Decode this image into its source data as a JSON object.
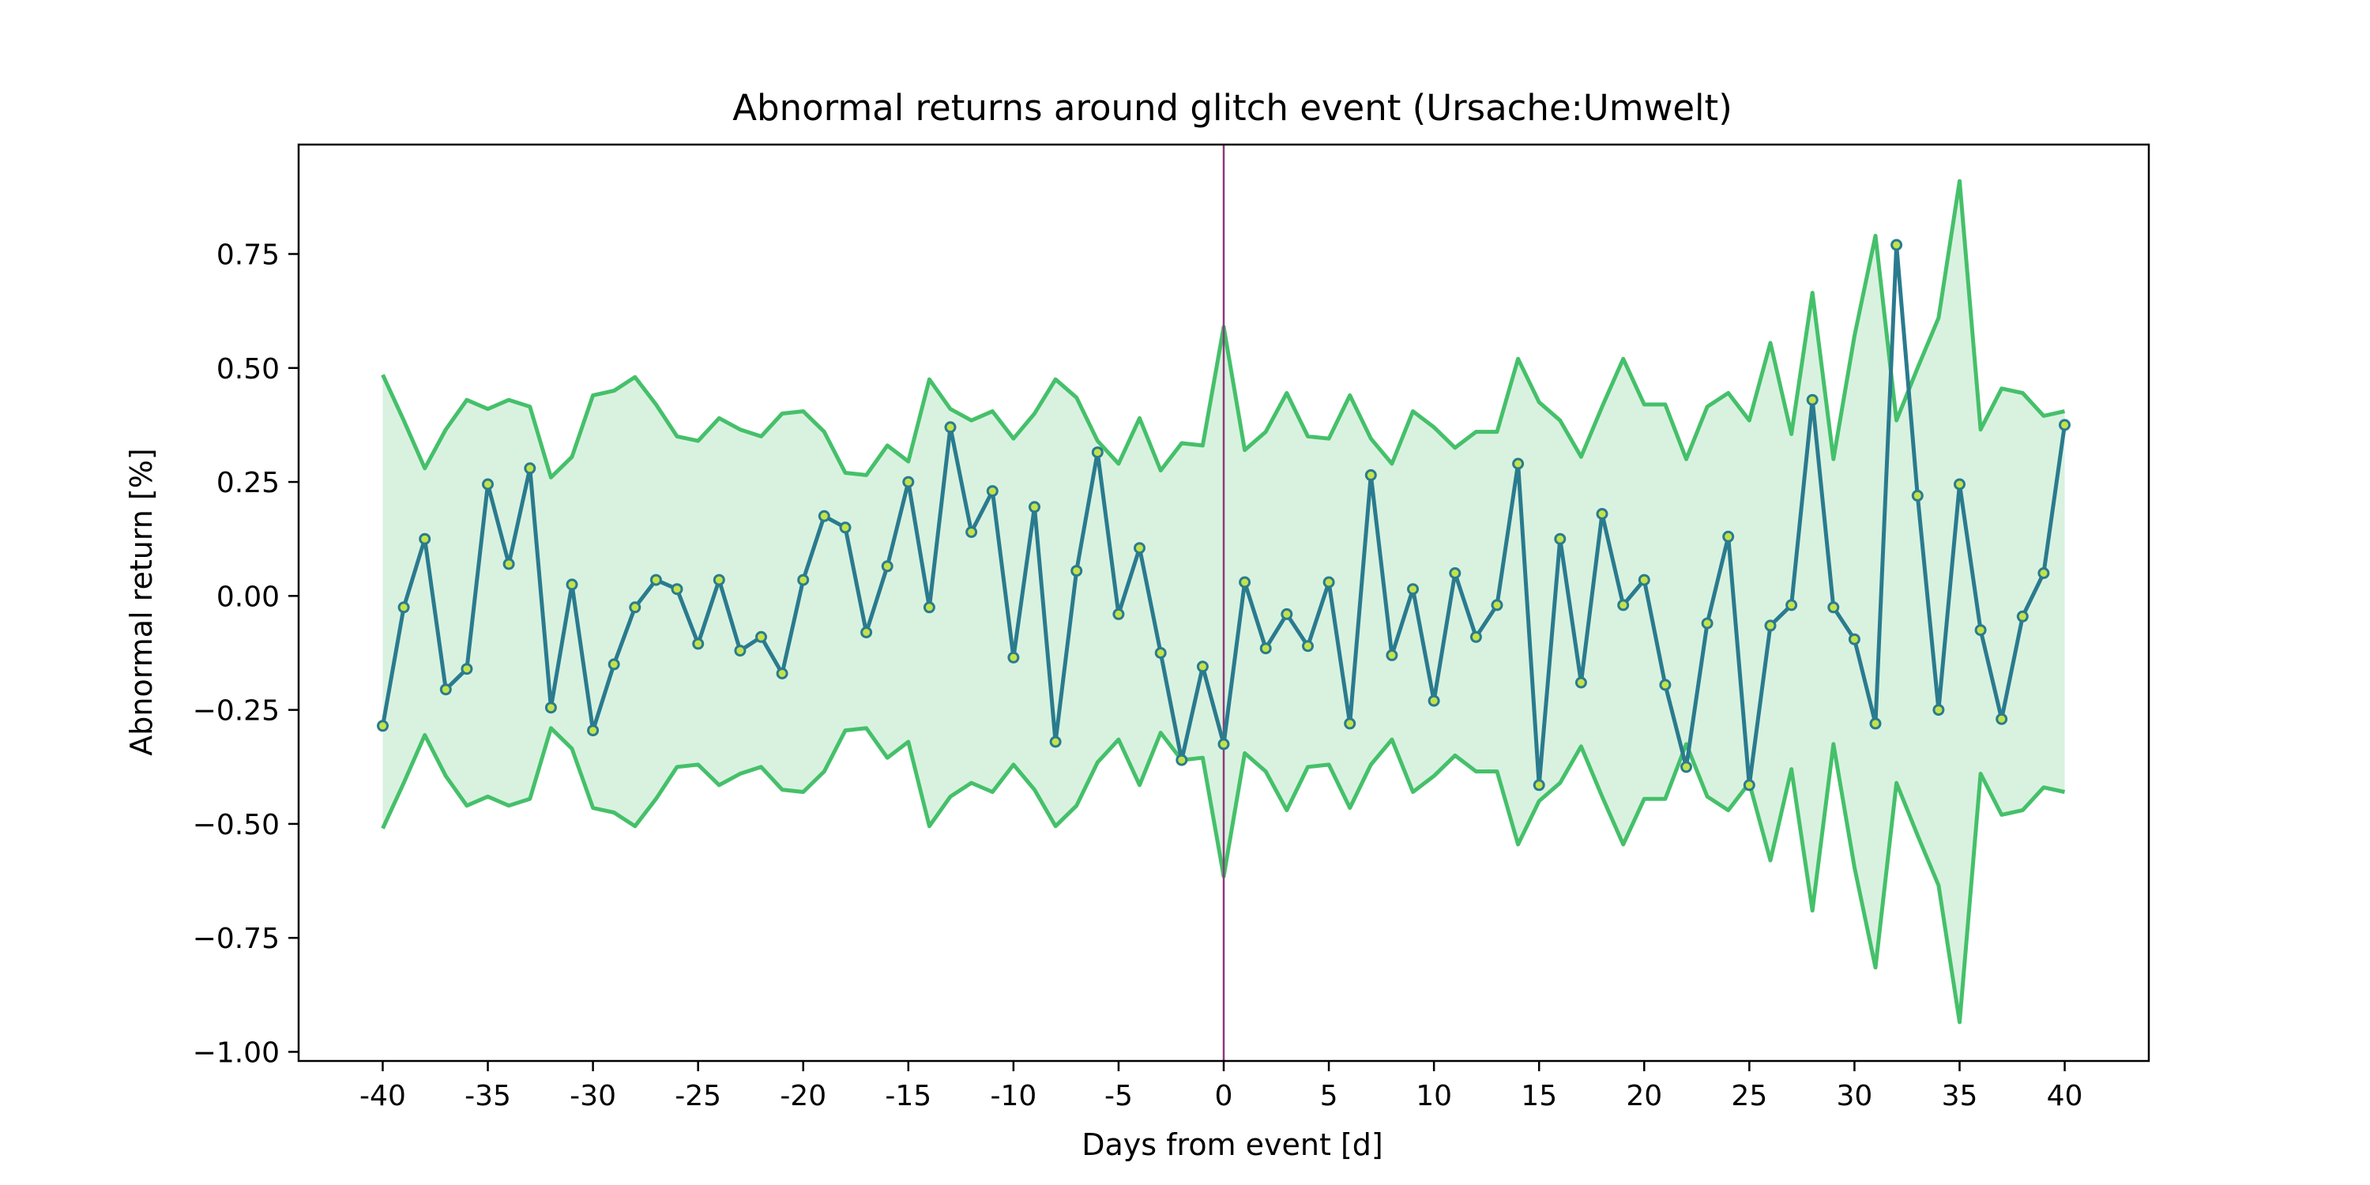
{
  "chart_data": {
    "type": "line",
    "title": "Abnormal returns around glitch event (Ursache:Umwelt)",
    "xlabel": "Days from event [d]",
    "ylabel": "Abnormal return [%]",
    "xlim": [
      -44,
      44
    ],
    "ylim": [
      -1.02,
      0.99
    ],
    "x_ticks": [
      -40,
      -35,
      -30,
      -25,
      -20,
      -15,
      -10,
      -5,
      0,
      5,
      10,
      15,
      20,
      25,
      30,
      35,
      40
    ],
    "x_tick_labels": [
      "-40",
      "-35",
      "-30",
      "-25",
      "-20",
      "-15",
      "-10",
      "-5",
      "0",
      "5",
      "10",
      "15",
      "20",
      "25",
      "30",
      "35",
      "40"
    ],
    "y_ticks": [
      -1.0,
      -0.75,
      -0.5,
      -0.25,
      0.0,
      0.25,
      0.5,
      0.75
    ],
    "y_tick_labels": [
      "−1.00",
      "−0.75",
      "−0.50",
      "−0.25",
      "0.00",
      "0.25",
      "0.50",
      "0.75"
    ],
    "event_day": 0,
    "grid": false,
    "legend": "none",
    "x": [
      -40,
      -39,
      -38,
      -37,
      -36,
      -35,
      -34,
      -33,
      -32,
      -31,
      -30,
      -29,
      -28,
      -27,
      -26,
      -25,
      -24,
      -23,
      -22,
      -21,
      -20,
      -19,
      -18,
      -17,
      -16,
      -15,
      -14,
      -13,
      -12,
      -11,
      -10,
      -9,
      -8,
      -7,
      -6,
      -5,
      -4,
      -3,
      -2,
      -1,
      0,
      1,
      2,
      3,
      4,
      5,
      6,
      7,
      8,
      9,
      10,
      11,
      12,
      13,
      14,
      15,
      16,
      17,
      18,
      19,
      20,
      21,
      22,
      23,
      24,
      25,
      26,
      27,
      28,
      29,
      30,
      31,
      32,
      33,
      34,
      35,
      36,
      37,
      38,
      39,
      40
    ],
    "series": [
      {
        "role": "abnormal-return",
        "values": [
          -0.285,
          -0.025,
          0.125,
          -0.205,
          -0.16,
          0.245,
          0.07,
          0.28,
          -0.245,
          0.025,
          -0.295,
          -0.15,
          -0.025,
          0.035,
          0.015,
          -0.105,
          0.035,
          -0.12,
          -0.09,
          -0.17,
          0.035,
          0.175,
          0.15,
          -0.08,
          0.065,
          0.25,
          -0.025,
          0.37,
          0.14,
          0.23,
          -0.135,
          0.195,
          -0.32,
          0.055,
          0.315,
          -0.04,
          0.105,
          -0.125,
          -0.36,
          -0.155,
          -0.325,
          0.03,
          -0.115,
          -0.04,
          -0.11,
          0.03,
          -0.28,
          0.265,
          -0.13,
          0.015,
          -0.23,
          0.05,
          -0.09,
          -0.02,
          0.29,
          -0.415,
          0.125,
          -0.19,
          0.18,
          -0.02,
          0.035,
          -0.195,
          -0.375,
          -0.06,
          0.13,
          -0.415,
          -0.065,
          -0.02,
          0.43,
          -0.025,
          -0.095,
          -0.28,
          0.77,
          0.22,
          -0.25,
          0.245,
          -0.075,
          -0.27,
          -0.045,
          0.05,
          0.375
        ]
      },
      {
        "role": "upper-band",
        "values": [
          0.485,
          0.385,
          0.28,
          0.365,
          0.43,
          0.41,
          0.43,
          0.415,
          0.26,
          0.305,
          0.44,
          0.45,
          0.48,
          0.42,
          0.35,
          0.34,
          0.39,
          0.365,
          0.35,
          0.4,
          0.405,
          0.36,
          0.27,
          0.265,
          0.33,
          0.295,
          0.475,
          0.41,
          0.385,
          0.405,
          0.345,
          0.4,
          0.475,
          0.435,
          0.34,
          0.29,
          0.39,
          0.275,
          0.335,
          0.33,
          0.59,
          0.32,
          0.36,
          0.445,
          0.35,
          0.345,
          0.44,
          0.345,
          0.29,
          0.405,
          0.37,
          0.325,
          0.36,
          0.36,
          0.52,
          0.425,
          0.385,
          0.305,
          0.415,
          0.52,
          0.42,
          0.42,
          0.3,
          0.415,
          0.445,
          0.385,
          0.555,
          0.355,
          0.665,
          0.3,
          0.57,
          0.79,
          0.385,
          0.5,
          0.61,
          0.91,
          0.365,
          0.455,
          0.445,
          0.395,
          0.405
        ]
      },
      {
        "role": "lower-band",
        "values": [
          -0.51,
          -0.41,
          -0.305,
          -0.395,
          -0.46,
          -0.44,
          -0.46,
          -0.445,
          -0.29,
          -0.335,
          -0.465,
          -0.475,
          -0.505,
          -0.445,
          -0.375,
          -0.37,
          -0.415,
          -0.39,
          -0.375,
          -0.425,
          -0.43,
          -0.385,
          -0.295,
          -0.29,
          -0.355,
          -0.32,
          -0.505,
          -0.44,
          -0.41,
          -0.43,
          -0.37,
          -0.425,
          -0.505,
          -0.46,
          -0.365,
          -0.315,
          -0.415,
          -0.3,
          -0.36,
          -0.355,
          -0.615,
          -0.345,
          -0.385,
          -0.47,
          -0.375,
          -0.37,
          -0.465,
          -0.37,
          -0.315,
          -0.43,
          -0.395,
          -0.35,
          -0.385,
          -0.385,
          -0.545,
          -0.45,
          -0.41,
          -0.33,
          -0.44,
          -0.545,
          -0.445,
          -0.445,
          -0.325,
          -0.44,
          -0.47,
          -0.41,
          -0.58,
          -0.38,
          -0.69,
          -0.325,
          -0.595,
          -0.815,
          -0.41,
          -0.525,
          -0.635,
          -0.935,
          -0.39,
          -0.48,
          -0.47,
          -0.42,
          -0.43
        ]
      }
    ],
    "colors": {
      "line": "#2a7b8e",
      "marker_face": "#c4e34a",
      "band_line": "#45c06a",
      "band_fill": "#d9f2e0",
      "event_line": "#8b3a7a"
    }
  }
}
